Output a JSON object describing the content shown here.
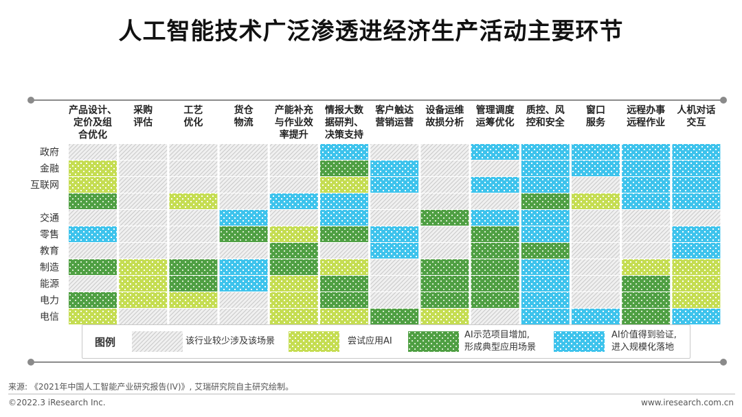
{
  "title": "人工智能技术广泛渗透进经济生产活动主要环节",
  "legend": {
    "title": "图例",
    "items": [
      {
        "level": 0,
        "lines": [
          "该行业较少涉及该场景"
        ]
      },
      {
        "level": 1,
        "lines": [
          "尝试应用AI"
        ]
      },
      {
        "level": 2,
        "lines": [
          "AI示范项目增加,",
          "形成典型应用场景"
        ]
      },
      {
        "level": 3,
        "lines": [
          "AI价值得到验证,",
          "进入规模化落地"
        ]
      }
    ]
  },
  "colors": {
    "level0_bg": "#f0f0f0",
    "level0_stripe": "#c8c8c8",
    "level1_bg": "#c5dd52",
    "level1_mark": "#ffffff",
    "level2_bg": "#4f9f43",
    "level2_mark": "#d8ecd0",
    "level3_bg": "#3ec3ec",
    "level3_mark": "#ffffff",
    "rule": "#8a8a8a"
  },
  "chart_data": {
    "type": "heatmap",
    "columns": [
      [
        "产品设计、",
        "定价及组",
        "合优化"
      ],
      [
        "采购",
        "评估"
      ],
      [
        "工艺",
        "优化"
      ],
      [
        "货仓",
        "物流"
      ],
      [
        "产能补充",
        "与作业效",
        "率提升"
      ],
      [
        "情报大数",
        "据研判、",
        "决策支持"
      ],
      [
        "客户触达",
        "营销运营"
      ],
      [
        "设备运维",
        "故损分析"
      ],
      [
        "管理调度",
        "运筹优化"
      ],
      [
        "质控、风",
        "控和安全"
      ],
      [
        "窗口",
        "服务"
      ],
      [
        "远程办事",
        "远程作业"
      ],
      [
        "人机对话",
        "交互"
      ]
    ],
    "rows": [
      "政府",
      "金融",
      "互联网",
      "",
      "交通",
      "零售",
      "教育",
      "制造",
      "能源",
      "电力",
      "电信"
    ],
    "values": [
      [
        0,
        0,
        0,
        0,
        0,
        3,
        0,
        0,
        3,
        3,
        3,
        3,
        3
      ],
      [
        1,
        0,
        0,
        0,
        0,
        2,
        3,
        0,
        0,
        3,
        3,
        3,
        3
      ],
      [
        1,
        0,
        0,
        0,
        0,
        1,
        3,
        0,
        3,
        3,
        0,
        3,
        3
      ],
      [
        2,
        0,
        1,
        0,
        3,
        3,
        0,
        0,
        0,
        2,
        1,
        3,
        3
      ],
      [
        0,
        0,
        0,
        3,
        0,
        3,
        0,
        2,
        3,
        3,
        0,
        0,
        0
      ],
      [
        3,
        0,
        0,
        2,
        1,
        2,
        3,
        0,
        2,
        3,
        0,
        0,
        3
      ],
      [
        0,
        0,
        0,
        0,
        2,
        0,
        3,
        0,
        2,
        2,
        0,
        0,
        3
      ],
      [
        2,
        1,
        2,
        3,
        2,
        1,
        0,
        2,
        2,
        3,
        0,
        1,
        1
      ],
      [
        0,
        1,
        2,
        3,
        1,
        2,
        0,
        2,
        2,
        3,
        0,
        2,
        1
      ],
      [
        2,
        1,
        1,
        0,
        1,
        2,
        0,
        2,
        2,
        3,
        0,
        2,
        1
      ],
      [
        1,
        0,
        0,
        0,
        1,
        1,
        2,
        1,
        0,
        3,
        3,
        2,
        3
      ]
    ]
  },
  "footer": {
    "source": "来源: 《2021年中国人工智能产业研究报告(IV)》, 艾瑞研究院自主研究绘制。",
    "copyright": "©2022.3 iResearch Inc.",
    "website": "www.iresearch.com.cn"
  }
}
